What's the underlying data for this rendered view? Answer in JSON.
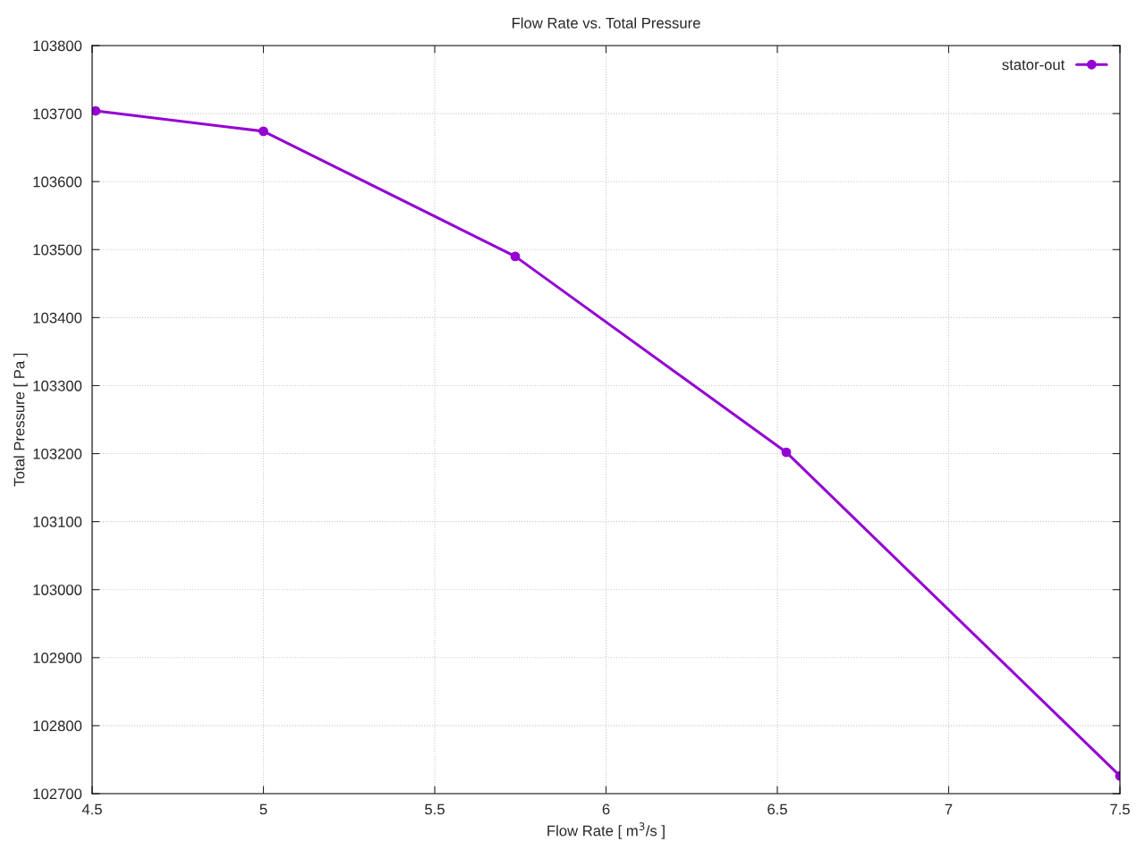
{
  "chart_data": {
    "type": "line",
    "title": "Flow Rate vs. Total Pressure",
    "xlabel": "Flow Rate [ m$^{3}$/s ]",
    "ylabel": "Total Pressure [ Pa ]",
    "series": [
      {
        "name": "stator-out",
        "color": "#9400d3",
        "x": [
          4.51,
          5.0,
          5.735,
          6.526,
          7.5
        ],
        "values": [
          103704,
          103674,
          103490,
          103202,
          102726
        ]
      }
    ],
    "xlim": [
      4.5,
      7.5
    ],
    "xticks": [
      4.5,
      5,
      5.5,
      6,
      6.5,
      7,
      7.5
    ],
    "ylim": [
      102700,
      103800
    ],
    "yticks": [
      102700,
      102800,
      102900,
      103000,
      103100,
      103200,
      103300,
      103400,
      103500,
      103600,
      103700,
      103800
    ],
    "grid": true,
    "legend": "top right",
    "marker": "circle",
    "line_style": "solid"
  }
}
